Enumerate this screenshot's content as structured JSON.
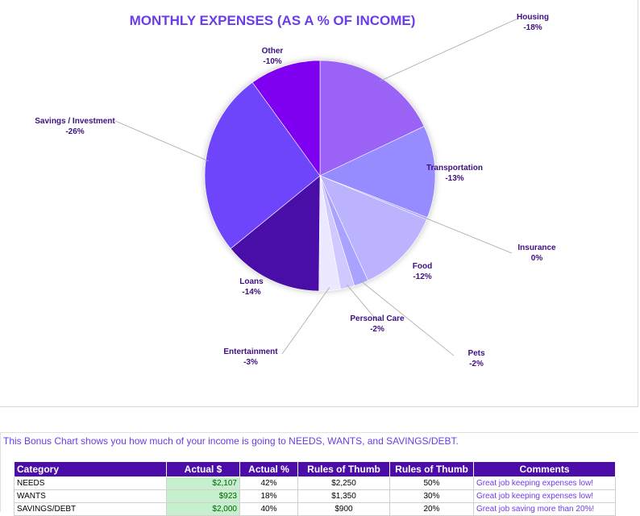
{
  "chart_data": {
    "type": "pie",
    "title": "MONTHLY EXPENSES (AS A % OF INCOME)",
    "slices": [
      {
        "name": "Housing",
        "label": "-18%",
        "value": 18,
        "color": "#9b63f5"
      },
      {
        "name": "Transportation",
        "label": "-13%",
        "value": 13,
        "color": "#968cff"
      },
      {
        "name": "Insurance",
        "label": "0%",
        "value": 0.3,
        "color": "#b0a4ff"
      },
      {
        "name": "Food",
        "label": "-12%",
        "value": 12,
        "color": "#bcb3ff"
      },
      {
        "name": "Pets",
        "label": "-2%",
        "value": 2,
        "color": "#a9a2ff"
      },
      {
        "name": "Personal Care",
        "label": "-2%",
        "value": 2,
        "color": "#cfc9ff"
      },
      {
        "name": "Entertainment",
        "label": "-3%",
        "value": 3,
        "color": "#ece8ff"
      },
      {
        "name": "Loans",
        "label": "-14%",
        "value": 14,
        "color": "#4a0ca8"
      },
      {
        "name": "Savings / Investment",
        "label": "-26%",
        "value": 26,
        "color": "#6e44fa"
      },
      {
        "name": "Other",
        "label": "-10%",
        "value": 10,
        "color": "#7f00f0"
      }
    ]
  },
  "note": "This Bonus Chart shows you how much of your income is going to NEEDS, WANTS, and SAVINGS/DEBT.",
  "table": {
    "headers": [
      "Category",
      "Actual $",
      "Actual %",
      "Rules of Thumb",
      "Rules of Thumb",
      "Comments"
    ],
    "rows": [
      {
        "category": "NEEDS",
        "actual": "$2,107",
        "pct": "42%",
        "rule_amount": "$2,250",
        "rule_pct": "50%",
        "comment": "Great job keeping expenses low!"
      },
      {
        "category": "WANTS",
        "actual": "$923",
        "pct": "18%",
        "rule_amount": "$1,350",
        "rule_pct": "30%",
        "comment": "Great job keeping expenses low!"
      },
      {
        "category": "SAVINGS/DEBT",
        "actual": "$2,000",
        "pct": "40%",
        "rule_amount": "$900",
        "rule_pct": "20%",
        "comment": "Great job saving more than 20%!"
      }
    ]
  }
}
